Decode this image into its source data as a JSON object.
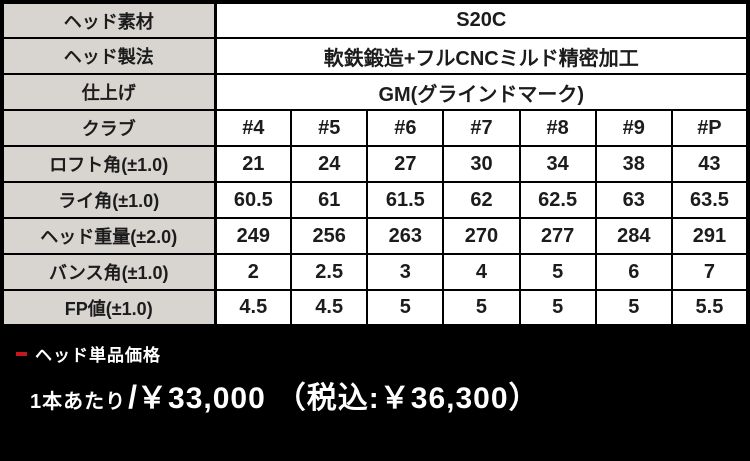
{
  "colors": {
    "label_bg": "#d8d5d1",
    "cell_bg": "#ffffff",
    "border": "#000000",
    "band_bg": "#000000",
    "accent_red": "#c8161d",
    "band_text": "#ffffff"
  },
  "table": {
    "spec_rows": [
      {
        "label": "ヘッド素材",
        "value": "S20C"
      },
      {
        "label": "ヘッド製法",
        "value": "軟鉄鍛造+フルCNCミルド精密加工"
      },
      {
        "label": "仕上げ",
        "value": "GM(グラインドマーク)"
      }
    ],
    "club_rows": [
      {
        "label": "クラブ",
        "values": [
          "#4",
          "#5",
          "#6",
          "#7",
          "#8",
          "#9",
          "#P"
        ]
      },
      {
        "label": "ロフト角(±1.0)",
        "values": [
          "21",
          "24",
          "27",
          "30",
          "34",
          "38",
          "43"
        ]
      },
      {
        "label": "ライ角(±1.0)",
        "values": [
          "60.5",
          "61",
          "61.5",
          "62",
          "62.5",
          "63",
          "63.5"
        ]
      },
      {
        "label": "ヘッド重量(±2.0)",
        "values": [
          "249",
          "256",
          "263",
          "270",
          "277",
          "284",
          "291"
        ]
      },
      {
        "label": "バンス角(±1.0)",
        "values": [
          "2",
          "2.5",
          "3",
          "4",
          "5",
          "6",
          "7"
        ]
      },
      {
        "label": "FP値(±1.0)",
        "values": [
          "4.5",
          "4.5",
          "5",
          "5",
          "5",
          "5",
          "5.5"
        ]
      }
    ]
  },
  "price": {
    "heading": "ヘッド単品価格",
    "per_unit": "1本あたり",
    "separator": "/",
    "amount": "￥33,000",
    "tax_note": "（税込:￥36,300）"
  }
}
